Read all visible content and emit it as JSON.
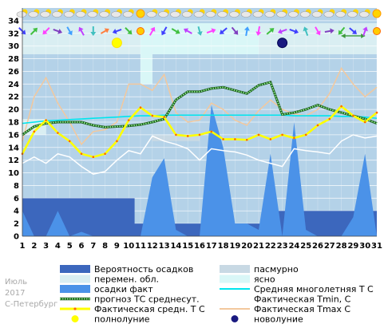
{
  "chart_data": {
    "type": "line",
    "meta": {
      "month": "Июль",
      "year": "2017",
      "city": "С-Петербург"
    },
    "x": [
      1,
      2,
      3,
      4,
      5,
      6,
      7,
      8,
      9,
      10,
      11,
      12,
      13,
      14,
      15,
      16,
      17,
      18,
      19,
      20,
      21,
      22,
      23,
      24,
      25,
      26,
      27,
      28,
      29,
      30,
      31
    ],
    "xlabels": [
      "1",
      "2",
      "3",
      "4",
      "5",
      "6",
      "7",
      "8",
      "9",
      "10",
      "11",
      "12",
      "13",
      "14",
      "15",
      "16",
      "17",
      "18",
      "19",
      "20",
      "21",
      "22",
      "23",
      "24",
      "25",
      "26",
      "27",
      "28",
      "29",
      "30",
      "31"
    ],
    "ylim": [
      0,
      36
    ],
    "yticks": [
      0,
      2,
      4,
      6,
      8,
      10,
      12,
      14,
      16,
      18,
      20,
      22,
      24,
      26,
      28,
      30,
      32,
      34
    ],
    "colors": {
      "plot_bg": "#b4d2e8",
      "overcast": "#c8d9e4",
      "partly": "#d9eef2",
      "clear": "#d9f7f7",
      "grid": "#ffffff",
      "precip_prob": "#3c67bd",
      "precip_fact": "#4b92e8",
      "normal": "#00e5ee",
      "forecast": "#008c00",
      "fact_mean": "#ffff00",
      "tmin": "#ffffff",
      "tmax": "#f3c89d",
      "full_moon": "#ffff00",
      "new_moon": "#1a1a80"
    },
    "cloud_bands": [
      {
        "type": "partly",
        "x0": 1,
        "x1": 11,
        "y0": 28.7,
        "y1": 33.6
      },
      {
        "type": "clear",
        "x0": 11,
        "x1": 12,
        "y0": 24,
        "y1": 33.6
      },
      {
        "type": "clear",
        "x0": 12,
        "x1": 21,
        "y0": 28.7,
        "y1": 33.6
      },
      {
        "type": "partly",
        "x0": 21,
        "x1": 31,
        "y0": 28.7,
        "y1": 33.6
      },
      {
        "type": "partly",
        "x0": 1,
        "x1": 3,
        "y0": 16,
        "y1": 18.5
      },
      {
        "type": "overcast",
        "x0": 12,
        "x1": 16,
        "y0": 15,
        "y1": 16
      }
    ],
    "series": [
      {
        "name": "Вероятность осадков",
        "type": "area",
        "values": [
          6,
          6,
          6,
          6,
          6,
          6,
          6,
          6,
          6,
          6,
          2,
          2,
          2,
          2,
          2,
          2,
          2,
          2,
          2,
          2,
          2,
          4,
          4,
          4,
          4,
          4,
          4,
          4,
          4,
          4,
          4
        ]
      },
      {
        "name": "осадки факт",
        "type": "area",
        "values": [
          4,
          0,
          0,
          4,
          0,
          0.7,
          0,
          0,
          0,
          0,
          0,
          9.3,
          12.3,
          1,
          0,
          0,
          20.7,
          14,
          2,
          2,
          1,
          13,
          0,
          18,
          1,
          0,
          0,
          0,
          3,
          13,
          0
        ]
      },
      {
        "name": "Средняя многолетняя Т С",
        "type": "line",
        "values": [
          17.8,
          18.0,
          18.2,
          18.3,
          18.4,
          18.5,
          18.6,
          18.7,
          18.8,
          18.9,
          19.0,
          19.0,
          19.1,
          19.1,
          19.1,
          19.1,
          19.1,
          19.1,
          19.1,
          19.1,
          19.1,
          19.1,
          19.1,
          19.0,
          19.0,
          19.0,
          19.0,
          18.9,
          18.9,
          18.8,
          18.6
        ]
      },
      {
        "name": "прогноз ТС среднесут.",
        "type": "line",
        "values": [
          16.0,
          17.3,
          17.8,
          18.0,
          18.0,
          18.0,
          17.5,
          17.2,
          17.3,
          17.4,
          17.6,
          18.0,
          18.5,
          21.5,
          22.8,
          22.8,
          23.3,
          23.5,
          23.0,
          22.5,
          23.8,
          24.3,
          19.2,
          19.5,
          20.0,
          20.7,
          20.0,
          19.5,
          19.0,
          18.5,
          17.8
        ]
      },
      {
        "name": "Фактическая средн. Т С",
        "type": "line",
        "values": [
          13.0,
          16.5,
          18.3,
          16.3,
          15.0,
          13.0,
          12.5,
          13.0,
          15.0,
          18.3,
          20.3,
          19.0,
          18.8,
          16.0,
          15.8,
          16.0,
          16.5,
          15.3,
          15.3,
          15.2,
          16.0,
          15.3,
          16.0,
          15.5,
          16.0,
          17.5,
          18.5,
          20.5,
          19.0,
          18.0,
          19.5
        ]
      },
      {
        "name": "Фактическая Tmin, С",
        "type": "line",
        "values": [
          11.5,
          12.5,
          11.5,
          13.0,
          12.5,
          11.0,
          9.8,
          10.2,
          12.0,
          13.5,
          13.0,
          15.8,
          15.0,
          14.5,
          13.8,
          12.0,
          13.8,
          13.5,
          13.3,
          12.8,
          12.0,
          11.5,
          11.0,
          13.8,
          13.5,
          13.3,
          13.0,
          15.0,
          16.0,
          15.5,
          15.8
        ]
      },
      {
        "name": "Фактическая Tmax С",
        "type": "line",
        "values": [
          15.0,
          22.0,
          25.0,
          21.0,
          18.0,
          14.5,
          16.5,
          16.8,
          18.0,
          24.0,
          24.0,
          23.0,
          25.5,
          19.5,
          18.0,
          18.3,
          21.0,
          20.0,
          18.3,
          17.5,
          19.8,
          21.5,
          20.0,
          19.3,
          19.0,
          20.0,
          22.5,
          26.5,
          24.0,
          22.0,
          23.5
        ]
      }
    ],
    "moon_phases": [
      {
        "name": "полнолуние",
        "day": 9,
        "y": 30.5
      },
      {
        "name": "новолуние",
        "day": 23,
        "y": 30.5
      }
    ],
    "legend": [
      {
        "label": "Вероятность осадков",
        "kind": "rect",
        "color": "#3c67bd"
      },
      {
        "label": "пасмурно",
        "kind": "rect",
        "color": "#c8d9e4"
      },
      {
        "label": "перемен. обл.",
        "kind": "rect",
        "color": "#d9eef2"
      },
      {
        "label": "ясно",
        "kind": "rect",
        "color": "#d9f7f7"
      },
      {
        "label": "осадки факт",
        "kind": "rect",
        "color": "#4b92e8"
      },
      {
        "label": "Средняя многолетняя Т С",
        "kind": "line",
        "color": "#00e5ee"
      },
      {
        "label": "прогноз ТС среднесут.",
        "kind": "dotted",
        "color": "#008c00"
      },
      {
        "label": "Фактическая Tmin, С",
        "kind": "line",
        "color": "#ffffff"
      },
      {
        "label": "Фактическая средн. Т С",
        "kind": "marker",
        "color": "#ffff00"
      },
      {
        "label": "Фактическая Tmax С",
        "kind": "line",
        "color": "#f3c89d"
      },
      {
        "label": "полнолуние",
        "kind": "dot",
        "color": "#ffff00"
      },
      {
        "label": "новолуние",
        "kind": "dot",
        "color": "#1a1a80"
      }
    ],
    "weather_icons": [
      "cloud-sun",
      "cloud-sun",
      "cloud-sun",
      "cloud-sun",
      "cloud-sun",
      "cloud-sun",
      "cloud-sun",
      "cloud-sun",
      "cloud-sun",
      "cloud-sun",
      "sun",
      "cloud-sun",
      "cloud-sun",
      "cloud-sun",
      "cloud-sun",
      "cloud-sun",
      "cloud-sun",
      "cloud-sun",
      "cloud-sun",
      "cloud-sun",
      "cloud-sun",
      "cloud-sun",
      "cloud-sun",
      "cloud-sun",
      "cloud-sun",
      "cloud-sun",
      "cloud-sun",
      "cloud-sun",
      "cloud-sun",
      "cloud-sun",
      "sun"
    ],
    "wind_icons": [
      "wind-arrow-icon",
      "wind-arrow-icon",
      "wind-arrow-icon",
      "wind-arrow-icon",
      "wind-arrow-icon",
      "wind-arrow-icon",
      "wind-arrow-icon",
      "wind-arrow-icon",
      "wind-arrow-icon",
      "wind-arrow-icon",
      "sun-icon",
      "wind-arrow-icon",
      "wind-arrow-icon",
      "wind-arrow-icon",
      "wind-arrow-icon",
      "wind-arrow-icon",
      "wind-arrow-icon",
      "wind-arrow-icon",
      "wind-arrow-icon",
      "wind-arrow-icon",
      "wind-arrow-icon",
      "wind-arrow-icon",
      "wind-arrow-icon",
      "wind-arrow-icon",
      "wind-arrow-icon",
      "wind-arrow-icon",
      "wind-arrow-icon",
      "wind-arrow-icon",
      "wind-arrow-icon",
      "wind-arrow-icon",
      "sun-icon"
    ],
    "wind_arrow_colors": [
      "#4040ff",
      "#40c040",
      "#ff40ff",
      "#8040c0",
      "#40a0ff",
      "#c040ff",
      "#40c0c0",
      "#ff8040",
      "#4040ff",
      "#40c040",
      "#ff8000",
      "#ff40ff",
      "#4040ff",
      "#40c040",
      "#c040ff",
      "#40c0c0",
      "#ff40ff",
      "#4040ff",
      "#8040c0",
      "#40a0ff",
      "#ff40ff",
      "#40c040",
      "#c040ff",
      "#4040ff",
      "#40c0c0",
      "#ff40ff",
      "#8040c0",
      "#40c040",
      "#4040ff",
      "#c040ff",
      "#ff8000"
    ],
    "wind_arrow_angles": [
      45,
      -45,
      135,
      20,
      60,
      -120,
      90,
      -30,
      160,
      45,
      0,
      -60,
      120,
      30,
      -150,
      75,
      -20,
      140,
      50,
      -80,
      100,
      -40,
      160,
      20,
      -110,
      60,
      -10,
      130,
      40,
      -70,
      0
    ],
    "range_marker_days": [
      28,
      30
    ]
  }
}
